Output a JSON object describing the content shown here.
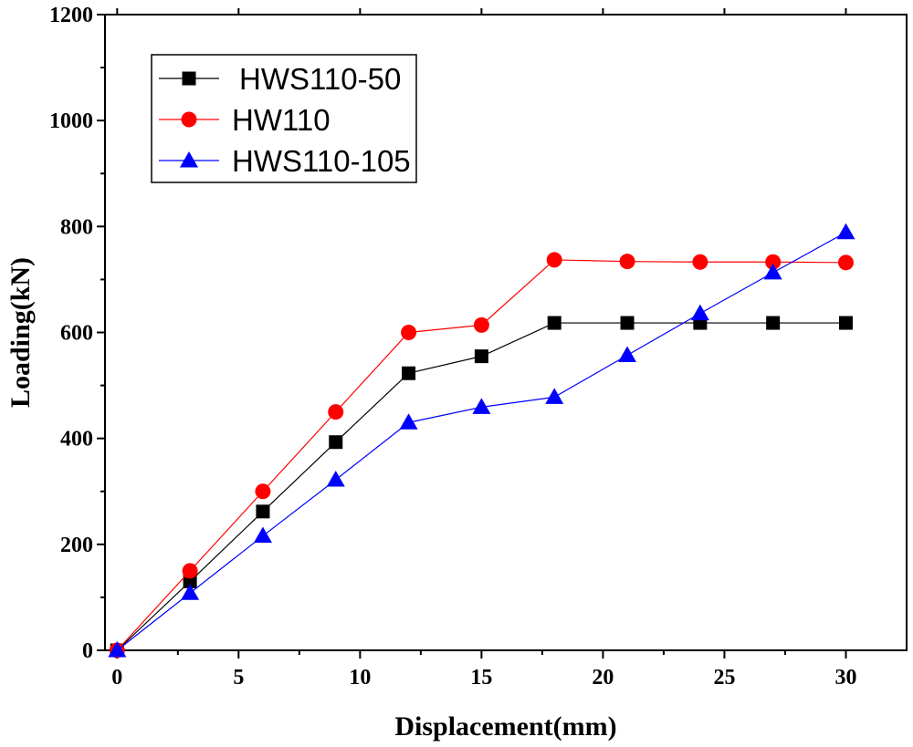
{
  "chart_data": {
    "type": "line",
    "title": "",
    "xlabel": "Displacement(mm)",
    "ylabel": "Loading(kN)",
    "xlim": [
      -0.5,
      32.5
    ],
    "ylim": [
      0,
      1200
    ],
    "xticks": [
      0,
      5,
      10,
      15,
      20,
      25,
      30
    ],
    "yticks": [
      0,
      200,
      400,
      600,
      800,
      1000,
      1200
    ],
    "x_tick_labels": [
      "0",
      "5",
      "10",
      "15",
      "20",
      "25",
      "30"
    ],
    "y_tick_labels": [
      "0",
      "200",
      "400",
      "600",
      "800",
      "1000",
      "1200"
    ],
    "grid": false,
    "legend_position": "top-left",
    "series": [
      {
        "name": "HWS110-50",
        "color": "#000000",
        "marker": "square",
        "x": [
          0,
          3,
          6,
          9,
          12,
          15,
          18,
          21,
          24,
          27,
          30
        ],
        "values": [
          0,
          130,
          262,
          393,
          523,
          555,
          618,
          618,
          618,
          618,
          618
        ]
      },
      {
        "name": "HW110",
        "color": "#ff0000",
        "marker": "circle",
        "x": [
          0,
          3,
          6,
          9,
          12,
          15,
          18,
          21,
          24,
          27,
          30
        ],
        "values": [
          0,
          150,
          300,
          450,
          600,
          614,
          737,
          734,
          733,
          733,
          732
        ]
      },
      {
        "name": "HWS110-105",
        "color": "#0000ff",
        "marker": "triangle",
        "x": [
          0,
          3,
          6,
          9,
          12,
          15,
          18,
          21,
          24,
          27,
          30
        ],
        "values": [
          0,
          108,
          216,
          322,
          430,
          459,
          478,
          557,
          636,
          713,
          789
        ]
      }
    ]
  }
}
